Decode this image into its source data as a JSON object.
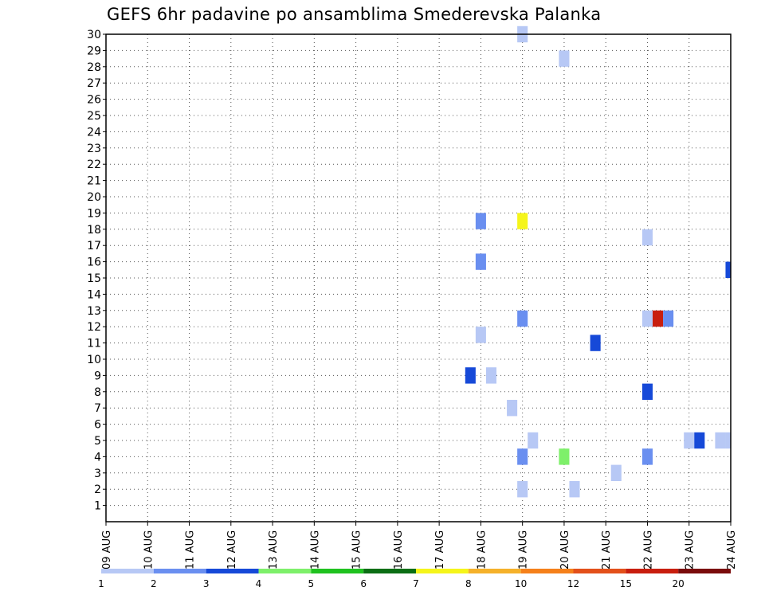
{
  "chart_data": {
    "type": "heatmap",
    "title": "GEFS 6hr padavine po ansamblima Smederevska Palanka",
    "xlabel": "",
    "ylabel": "",
    "x_ticks": [
      "09 AUG",
      "10 AUG",
      "11 AUG",
      "12 AUG",
      "13 AUG",
      "14 AUG",
      "15 AUG",
      "16 AUG",
      "17 AUG",
      "18 AUG",
      "19 AUG",
      "20 AUG",
      "21 AUG",
      "22 AUG",
      "23 AUG",
      "24 AUG"
    ],
    "y_ticks": [
      1,
      2,
      3,
      4,
      5,
      6,
      7,
      8,
      9,
      10,
      11,
      12,
      13,
      14,
      15,
      16,
      17,
      18,
      19,
      20,
      21,
      22,
      23,
      24,
      25,
      26,
      27,
      28,
      29,
      30
    ],
    "x_range_days": [
      0,
      15
    ],
    "y_range": [
      0,
      30
    ],
    "grid": true,
    "colorbar": {
      "labels": [
        "1",
        "2",
        "3",
        "4",
        "5",
        "6",
        "7",
        "8",
        "10",
        "12",
        "15",
        "20"
      ],
      "colors": [
        "#b7c8f5",
        "#6a8ff0",
        "#1649d8",
        "#7ef06a",
        "#1fc21f",
        "#0b6e14",
        "#f5f51a",
        "#f5b12a",
        "#f5801a",
        "#e3501a",
        "#c81e0e",
        "#7a0b0b"
      ]
    },
    "cells": [
      {
        "day": 9.25,
        "member": 9,
        "value": 1.5
      },
      {
        "day": 8.75,
        "member": 9,
        "value": 3.5
      },
      {
        "day": 9.0,
        "member": 18.5,
        "value": 2.5
      },
      {
        "day": 9.0,
        "member": 16,
        "value": 2.5
      },
      {
        "day": 9.0,
        "member": 11.5,
        "value": 1.5
      },
      {
        "day": 9.75,
        "member": 7,
        "value": 1.5
      },
      {
        "day": 10.0,
        "member": 30,
        "value": 1.5
      },
      {
        "day": 10.0,
        "member": 18.5,
        "value": 7.5
      },
      {
        "day": 10.0,
        "member": 12.5,
        "value": 2.5
      },
      {
        "day": 10.0,
        "member": 4,
        "value": 2.5
      },
      {
        "day": 10.0,
        "member": 2,
        "value": 1.5
      },
      {
        "day": 10.25,
        "member": 5,
        "value": 1.5
      },
      {
        "day": 11.0,
        "member": 28.5,
        "value": 1.5
      },
      {
        "day": 11.0,
        "member": 4,
        "value": 4.5
      },
      {
        "day": 11.25,
        "member": 2,
        "value": 1.5
      },
      {
        "day": 11.75,
        "member": 11,
        "value": 3.5
      },
      {
        "day": 12.25,
        "member": 3,
        "value": 1.5
      },
      {
        "day": 13.0,
        "member": 17.5,
        "value": 1.5
      },
      {
        "day": 13.0,
        "member": 12.5,
        "value": 1.5
      },
      {
        "day": 13.0,
        "member": 8,
        "value": 3.5
      },
      {
        "day": 13.0,
        "member": 4,
        "value": 2.5
      },
      {
        "day": 13.25,
        "member": 12.5,
        "value": 16
      },
      {
        "day": 13.5,
        "member": 12.5,
        "value": 2.5
      },
      {
        "day": 14.0,
        "member": 5,
        "value": 1.5
      },
      {
        "day": 14.25,
        "member": 5,
        "value": 3.5
      },
      {
        "day": 14.75,
        "member": 5,
        "value": 1.5
      },
      {
        "day": 15.0,
        "member": 5,
        "value": 1.5
      },
      {
        "day": 15.0,
        "member": 15.5,
        "value": 3.5
      }
    ]
  }
}
